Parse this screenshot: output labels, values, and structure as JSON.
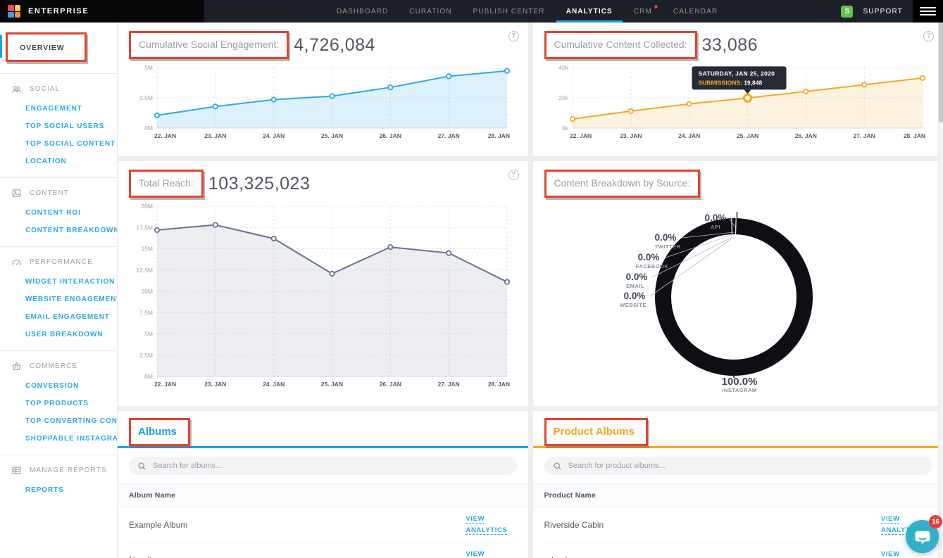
{
  "nav": {
    "brand": "ENTERPRISE",
    "items": [
      {
        "label": "DASHBOARD"
      },
      {
        "label": "CURATION"
      },
      {
        "label": "PUBLISH CENTER"
      },
      {
        "label": "ANALYTICS",
        "active": true
      },
      {
        "label": "CRM",
        "notification": true
      },
      {
        "label": "CALENDAR"
      }
    ],
    "user_badge": "S",
    "support_label": "SUPPORT"
  },
  "sidebar": {
    "overview": {
      "label": "OVERVIEW",
      "active": true
    },
    "sections": [
      {
        "icon": "people-icon",
        "label": "SOCIAL",
        "items": [
          "ENGAGEMENT",
          "TOP SOCIAL USERS",
          "TOP SOCIAL CONTENT",
          "LOCATION"
        ]
      },
      {
        "icon": "content-icon",
        "label": "CONTENT",
        "items": [
          "CONTENT ROI",
          "CONTENT BREAKDOWN"
        ]
      },
      {
        "icon": "performance-icon",
        "label": "PERFORMANCE",
        "items": [
          "WIDGET INTERACTION",
          "WEBSITE ENGAGEMENT",
          "EMAIL ENGAGEMENT",
          "USER BREAKDOWN"
        ]
      },
      {
        "icon": "commerce-icon",
        "label": "COMMERCE",
        "items": [
          "CONVERSION",
          "TOP PRODUCTS",
          "TOP CONVERTING CONTENT",
          "SHOPPABLE INSTAGRAM"
        ]
      },
      {
        "icon": "reports-icon",
        "label": "MANAGE REPORTS",
        "items": [
          "REPORTS"
        ]
      }
    ]
  },
  "cards": {
    "social_engagement": {
      "title": "Cumulative Social Engagement:",
      "value": "4,726,084"
    },
    "content_collected": {
      "title": "Cumulative Content Collected:",
      "value": "33,086"
    },
    "total_reach": {
      "title": "Total Reach:",
      "value": "103,325,023"
    },
    "content_breakdown": {
      "title": "Content Breakdown by Source:"
    }
  },
  "chart_data": [
    {
      "id": "cumulative-social-engagement",
      "type": "area",
      "title": "Cumulative Social Engagement",
      "categories": [
        "22. JAN",
        "23. JAN",
        "24. JAN",
        "25. JAN",
        "26. JAN",
        "27. JAN",
        "28. JAN"
      ],
      "values": [
        1050000,
        1780000,
        2350000,
        2640000,
        3360000,
        4280000,
        4726084
      ],
      "ylim": [
        0,
        5000000
      ],
      "yticks": [
        {
          "v": 0,
          "label": "0M"
        },
        {
          "v": 2500000,
          "label": "2.5M"
        },
        {
          "v": 5000000,
          "label": "5M"
        }
      ],
      "color": "#29abe2",
      "fill": "rgba(41,171,226,0.16)",
      "grid": true,
      "legend": false
    },
    {
      "id": "cumulative-content-collected",
      "type": "area",
      "title": "Cumulative Content Collected",
      "categories": [
        "22. JAN",
        "23. JAN",
        "24. JAN",
        "25. JAN",
        "26. JAN",
        "27. JAN",
        "28. JAN"
      ],
      "values": [
        6000,
        11200,
        16000,
        19848,
        24200,
        28600,
        33086
      ],
      "ylim": [
        0,
        40000
      ],
      "yticks": [
        {
          "v": 0,
          "label": "0k"
        },
        {
          "v": 20000,
          "label": "20k"
        },
        {
          "v": 40000,
          "label": "40k"
        }
      ],
      "color": "#f7a823",
      "fill": "rgba(247,168,35,0.14)",
      "grid": true,
      "legend": false,
      "highlight_index": 3,
      "tooltip": {
        "title": "SATURDAY, JAN 25, 2020",
        "label": "SUBMISSIONS:",
        "value": "19,848"
      }
    },
    {
      "id": "total-reach",
      "type": "area",
      "title": "Total Reach",
      "categories": [
        "22. JAN",
        "23. JAN",
        "24. JAN",
        "25. JAN",
        "26. JAN",
        "27. JAN",
        "28. JAN"
      ],
      "values": [
        17200000,
        17800000,
        16200000,
        12070000,
        15200000,
        14500000,
        11100000
      ],
      "ylim": [
        0,
        20000000
      ],
      "yticks": [
        {
          "v": 0,
          "label": "0M"
        },
        {
          "v": 2500000,
          "label": "2.5M"
        },
        {
          "v": 5000000,
          "label": "5M"
        },
        {
          "v": 7500000,
          "label": "7.5M"
        },
        {
          "v": 10000000,
          "label": "10M"
        },
        {
          "v": 12500000,
          "label": "12.5M"
        },
        {
          "v": 15000000,
          "label": "15M"
        },
        {
          "v": 17500000,
          "label": "17.5M"
        },
        {
          "v": 20000000,
          "label": "20M"
        }
      ],
      "color": "#6a7190",
      "fill": "rgba(106,113,144,0.12)",
      "grid": true,
      "legend": false
    },
    {
      "id": "content-breakdown-by-source",
      "type": "donut",
      "title": "Content Breakdown by Source",
      "color": "#0e0e14",
      "slices": [
        {
          "label": "API",
          "pct": "0.0%",
          "value": 0
        },
        {
          "label": "TWITTER",
          "pct": "0.0%",
          "value": 0
        },
        {
          "label": "FACEBOOK",
          "pct": "0.0%",
          "value": 0
        },
        {
          "label": "EMAIL",
          "pct": "0.0%",
          "value": 0
        },
        {
          "label": "WEBSITE",
          "pct": "0.0%",
          "value": 0
        },
        {
          "label": "INSTAGRAM",
          "pct": "100.0%",
          "value": 100
        }
      ]
    }
  ],
  "albums": {
    "title": "Albums",
    "accent_color": "#1e9fe8",
    "search_placeholder": "Search for albums...",
    "column_header": "Album Name",
    "rows": [
      {
        "name": "Example Album",
        "action": "VIEW ANALYTICS"
      },
      {
        "name": "Noodles",
        "action": "VIEW ANALYTICS"
      }
    ]
  },
  "product_albums": {
    "title": "Product Albums",
    "accent_color": "#f5a623",
    "search_placeholder": "Search for product albums...",
    "column_header": "Product Name",
    "rows": [
      {
        "name": "Riverside Cabin",
        "action": "VIEW ANALYTICS"
      },
      {
        "name": "adasdsa",
        "action": "VIEW ANALYTICS"
      }
    ]
  },
  "chat": {
    "badge": "16"
  }
}
